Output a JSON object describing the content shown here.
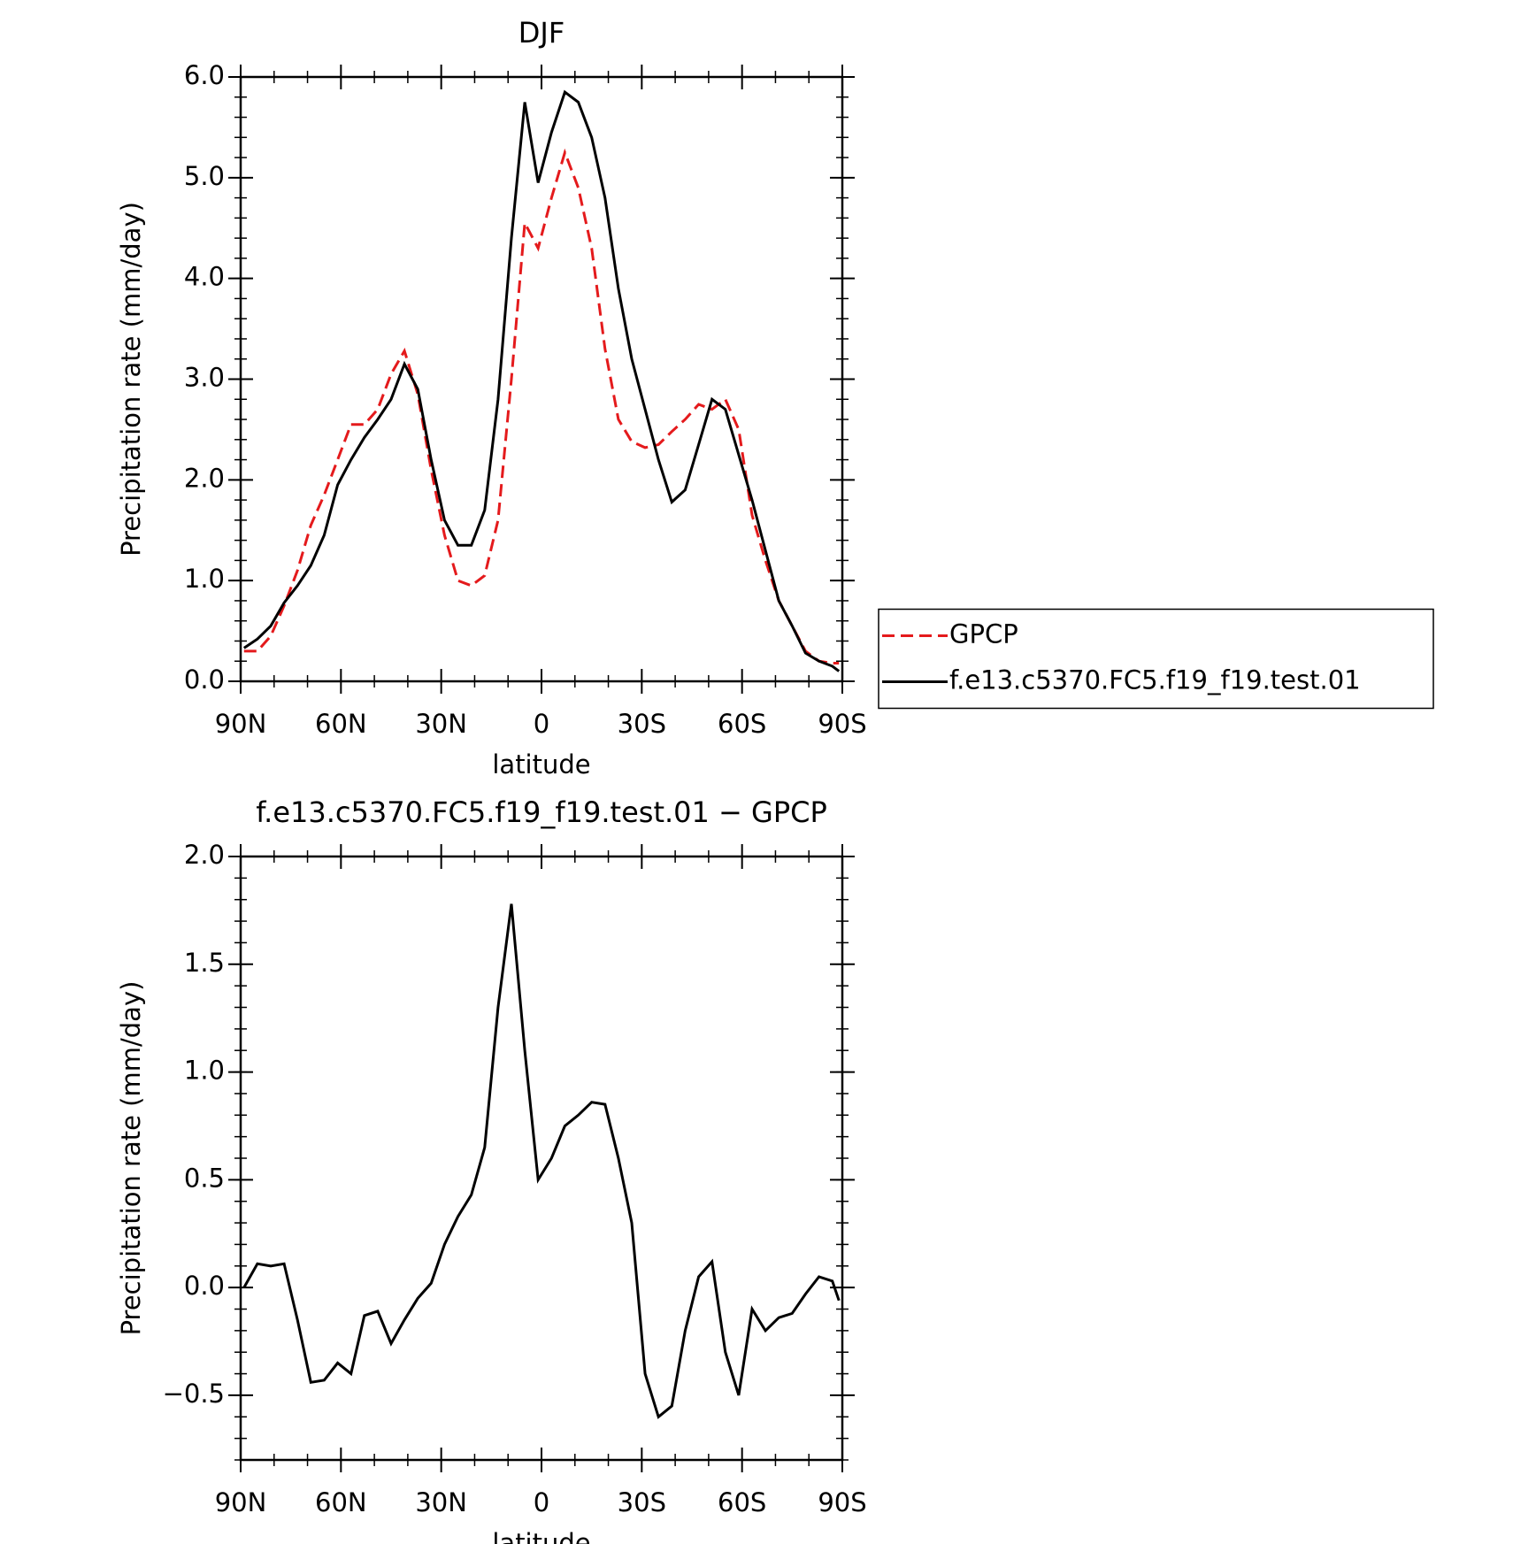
{
  "chart_data": [
    {
      "type": "line",
      "title": "DJF",
      "xlabel": "latitude",
      "ylabel": "Precipitation rate (mm/day)",
      "x": [
        89,
        85,
        81,
        77,
        73,
        69,
        65,
        61,
        57,
        53,
        49,
        45,
        41,
        37,
        33,
        29,
        25,
        21,
        17,
        13,
        9,
        5,
        1,
        -3,
        -7,
        -11,
        -15,
        -19,
        -23,
        -27,
        -31,
        -35,
        -39,
        -43,
        -47,
        -51,
        -55,
        -59,
        -63,
        -67,
        -71,
        -75,
        -79,
        -83,
        -87,
        -89
      ],
      "series": [
        {
          "name": "GPCP",
          "color": "#e41a1c",
          "linestyle": "dashed",
          "values": [
            0.3,
            0.3,
            0.45,
            0.75,
            1.1,
            1.55,
            1.85,
            2.2,
            2.55,
            2.55,
            2.7,
            3.05,
            3.28,
            2.85,
            2.1,
            1.45,
            1.0,
            0.95,
            1.05,
            1.6,
            3.0,
            4.55,
            4.3,
            4.8,
            5.25,
            4.9,
            4.3,
            3.3,
            2.6,
            2.38,
            2.32,
            2.35,
            2.48,
            2.6,
            2.75,
            2.7,
            2.8,
            2.5,
            1.65,
            1.2,
            0.8,
            0.55,
            0.3,
            0.2,
            0.18,
            0.18
          ]
        },
        {
          "name": "f.e13.c5370.FC5.f19_f19.test.01",
          "color": "#000000",
          "linestyle": "solid",
          "values": [
            0.33,
            0.42,
            0.55,
            0.78,
            0.95,
            1.15,
            1.45,
            1.95,
            2.2,
            2.42,
            2.6,
            2.8,
            3.15,
            2.9,
            2.2,
            1.6,
            1.35,
            1.35,
            1.7,
            2.8,
            4.4,
            5.75,
            4.95,
            5.45,
            5.85,
            5.75,
            5.4,
            4.8,
            3.9,
            3.2,
            2.7,
            2.2,
            1.78,
            1.9,
            2.35,
            2.8,
            2.7,
            2.25,
            1.8,
            1.3,
            0.8,
            0.55,
            0.28,
            0.2,
            0.15,
            0.1
          ]
        }
      ],
      "xlim": [
        90,
        -90
      ],
      "xticks": [
        {
          "value": 90,
          "label": "90N"
        },
        {
          "value": 60,
          "label": "60N"
        },
        {
          "value": 30,
          "label": "30N"
        },
        0,
        {
          "value": -30,
          "label": "30S"
        },
        {
          "value": -60,
          "label": "60S"
        },
        {
          "value": -90,
          "label": "90S"
        }
      ],
      "ylim": [
        0,
        6
      ],
      "yticks": [
        {
          "value": 0,
          "label": "0.0"
        },
        {
          "value": 1,
          "label": "1.0"
        },
        {
          "value": 2,
          "label": "2.0"
        },
        {
          "value": 3,
          "label": "3.0"
        },
        {
          "value": 4,
          "label": "4.0"
        },
        {
          "value": 5,
          "label": "5.0"
        },
        {
          "value": 6,
          "label": "6.0"
        }
      ],
      "legend": "outside-right"
    },
    {
      "type": "line",
      "title": "f.e13.c5370.FC5.f19_f19.test.01 − GPCP",
      "xlabel": "latitude",
      "ylabel": "Precipitation rate (mm/day)",
      "x": [
        89,
        85,
        81,
        77,
        73,
        69,
        65,
        61,
        57,
        53,
        49,
        45,
        41,
        37,
        33,
        29,
        25,
        21,
        17,
        13,
        9,
        5,
        1,
        -3,
        -7,
        -11,
        -15,
        -19,
        -23,
        -27,
        -31,
        -35,
        -39,
        -43,
        -47,
        -51,
        -55,
        -59,
        -63,
        -67,
        -71,
        -75,
        -79,
        -83,
        -87,
        -89
      ],
      "series": [
        {
          "color": "#000000",
          "linestyle": "solid",
          "values": [
            0.0,
            0.11,
            0.1,
            0.11,
            -0.15,
            -0.44,
            -0.43,
            -0.35,
            -0.4,
            -0.13,
            -0.11,
            -0.26,
            -0.15,
            -0.05,
            0.02,
            0.2,
            0.33,
            0.43,
            0.65,
            1.3,
            1.78,
            1.1,
            0.5,
            0.6,
            0.75,
            0.8,
            0.86,
            0.85,
            0.6,
            0.3,
            -0.4,
            -0.6,
            -0.55,
            -0.2,
            0.05,
            0.12,
            -0.3,
            -0.5,
            -0.1,
            -0.2,
            -0.14,
            -0.12,
            -0.03,
            0.05,
            0.03,
            -0.06
          ]
        }
      ],
      "xlim": [
        90,
        -90
      ],
      "xticks": [
        {
          "value": 90,
          "label": "90N"
        },
        {
          "value": 60,
          "label": "60N"
        },
        {
          "value": 30,
          "label": "30N"
        },
        0,
        {
          "value": -30,
          "label": "30S"
        },
        {
          "value": -60,
          "label": "60S"
        },
        {
          "value": -90,
          "label": "90S"
        }
      ],
      "ylim": [
        -0.8,
        2.0
      ],
      "yticks": [
        {
          "value": -0.5,
          "label": "−0.5"
        },
        {
          "value": 0,
          "label": "0.0"
        },
        0.5,
        {
          "value": 1,
          "label": "1.0"
        },
        1.5,
        {
          "value": 2,
          "label": "2.0"
        }
      ]
    }
  ]
}
